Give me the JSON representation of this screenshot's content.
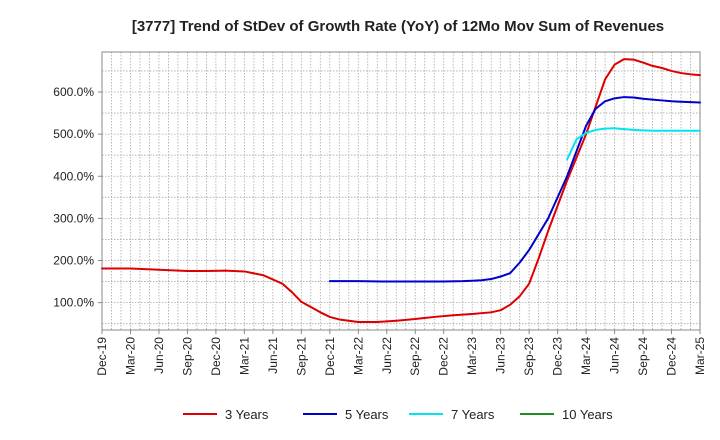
{
  "chart_data": {
    "type": "line",
    "title": "[3777]  Trend of StDev of Growth Rate (YoY) of 12Mo Mov Sum of Revenues",
    "xlabel": "",
    "ylabel": "",
    "x_ticks": [
      "Dec-19",
      "Mar-20",
      "Jun-20",
      "Sep-20",
      "Dec-20",
      "Mar-21",
      "Jun-21",
      "Sep-21",
      "Dec-21",
      "Mar-22",
      "Jun-22",
      "Sep-22",
      "Dec-22",
      "Mar-23",
      "Jun-23",
      "Sep-23",
      "Dec-23",
      "Mar-24",
      "Jun-24",
      "Sep-24",
      "Dec-24",
      "Mar-25"
    ],
    "y_ticks": [
      100,
      200,
      300,
      400,
      500,
      600
    ],
    "y_tick_labels": [
      "100.0%",
      "200.0%",
      "300.0%",
      "400.0%",
      "500.0%",
      "600.0%"
    ],
    "ylim": [
      35,
      695
    ],
    "xlim": [
      0,
      63
    ],
    "x_unit": "months since Dec-19",
    "grid": true,
    "legend_position": "bottom",
    "series": [
      {
        "name": "3 Years",
        "color": "#dd0000",
        "points": [
          [
            0,
            181
          ],
          [
            3,
            181
          ],
          [
            6,
            178
          ],
          [
            9,
            175
          ],
          [
            11,
            175
          ],
          [
            13,
            176
          ],
          [
            15,
            174
          ],
          [
            17,
            165
          ],
          [
            19,
            145
          ],
          [
            20,
            125
          ],
          [
            21,
            102
          ],
          [
            23,
            77
          ],
          [
            24,
            66
          ],
          [
            25,
            60
          ],
          [
            27,
            54
          ],
          [
            29,
            54
          ],
          [
            31,
            57
          ],
          [
            33,
            61
          ],
          [
            35,
            66
          ],
          [
            37,
            70
          ],
          [
            39,
            73
          ],
          [
            41,
            77
          ],
          [
            42,
            82
          ],
          [
            43,
            95
          ],
          [
            44,
            115
          ],
          [
            45,
            145
          ],
          [
            46,
            205
          ],
          [
            47,
            270
          ],
          [
            49,
            390
          ],
          [
            51,
            500
          ],
          [
            53,
            630
          ],
          [
            54,
            665
          ],
          [
            55,
            678
          ],
          [
            56,
            677
          ],
          [
            57,
            670
          ],
          [
            58,
            662
          ],
          [
            59,
            657
          ],
          [
            60,
            650
          ],
          [
            61,
            645
          ],
          [
            62,
            642
          ],
          [
            63,
            640
          ]
        ]
      },
      {
        "name": "5 Years",
        "color": "#0000cc",
        "points": [
          [
            24,
            151
          ],
          [
            27,
            151
          ],
          [
            30,
            150
          ],
          [
            33,
            150
          ],
          [
            36,
            150
          ],
          [
            38,
            151
          ],
          [
            39,
            152
          ],
          [
            40,
            153
          ],
          [
            41,
            156
          ],
          [
            42,
            162
          ],
          [
            43,
            170
          ],
          [
            44,
            195
          ],
          [
            45,
            225
          ],
          [
            47,
            300
          ],
          [
            49,
            400
          ],
          [
            51,
            520
          ],
          [
            52,
            560
          ],
          [
            53,
            578
          ],
          [
            54,
            585
          ],
          [
            55,
            588
          ],
          [
            56,
            587
          ],
          [
            57,
            584
          ],
          [
            58,
            582
          ],
          [
            59,
            580
          ],
          [
            60,
            578
          ],
          [
            61,
            577
          ],
          [
            62,
            576
          ],
          [
            63,
            575
          ]
        ]
      },
      {
        "name": "7 Years",
        "color": "#00e5ee",
        "points": [
          [
            49,
            440
          ],
          [
            50,
            488
          ],
          [
            51,
            503
          ],
          [
            52,
            510
          ],
          [
            53,
            513
          ],
          [
            54,
            514
          ],
          [
            55,
            512
          ],
          [
            56,
            510
          ],
          [
            57,
            509
          ],
          [
            58,
            508
          ],
          [
            59,
            508
          ],
          [
            60,
            508
          ],
          [
            61,
            508
          ],
          [
            62,
            508
          ],
          [
            63,
            508
          ]
        ]
      },
      {
        "name": "10 Years",
        "color": "#228b22",
        "points": []
      }
    ]
  }
}
